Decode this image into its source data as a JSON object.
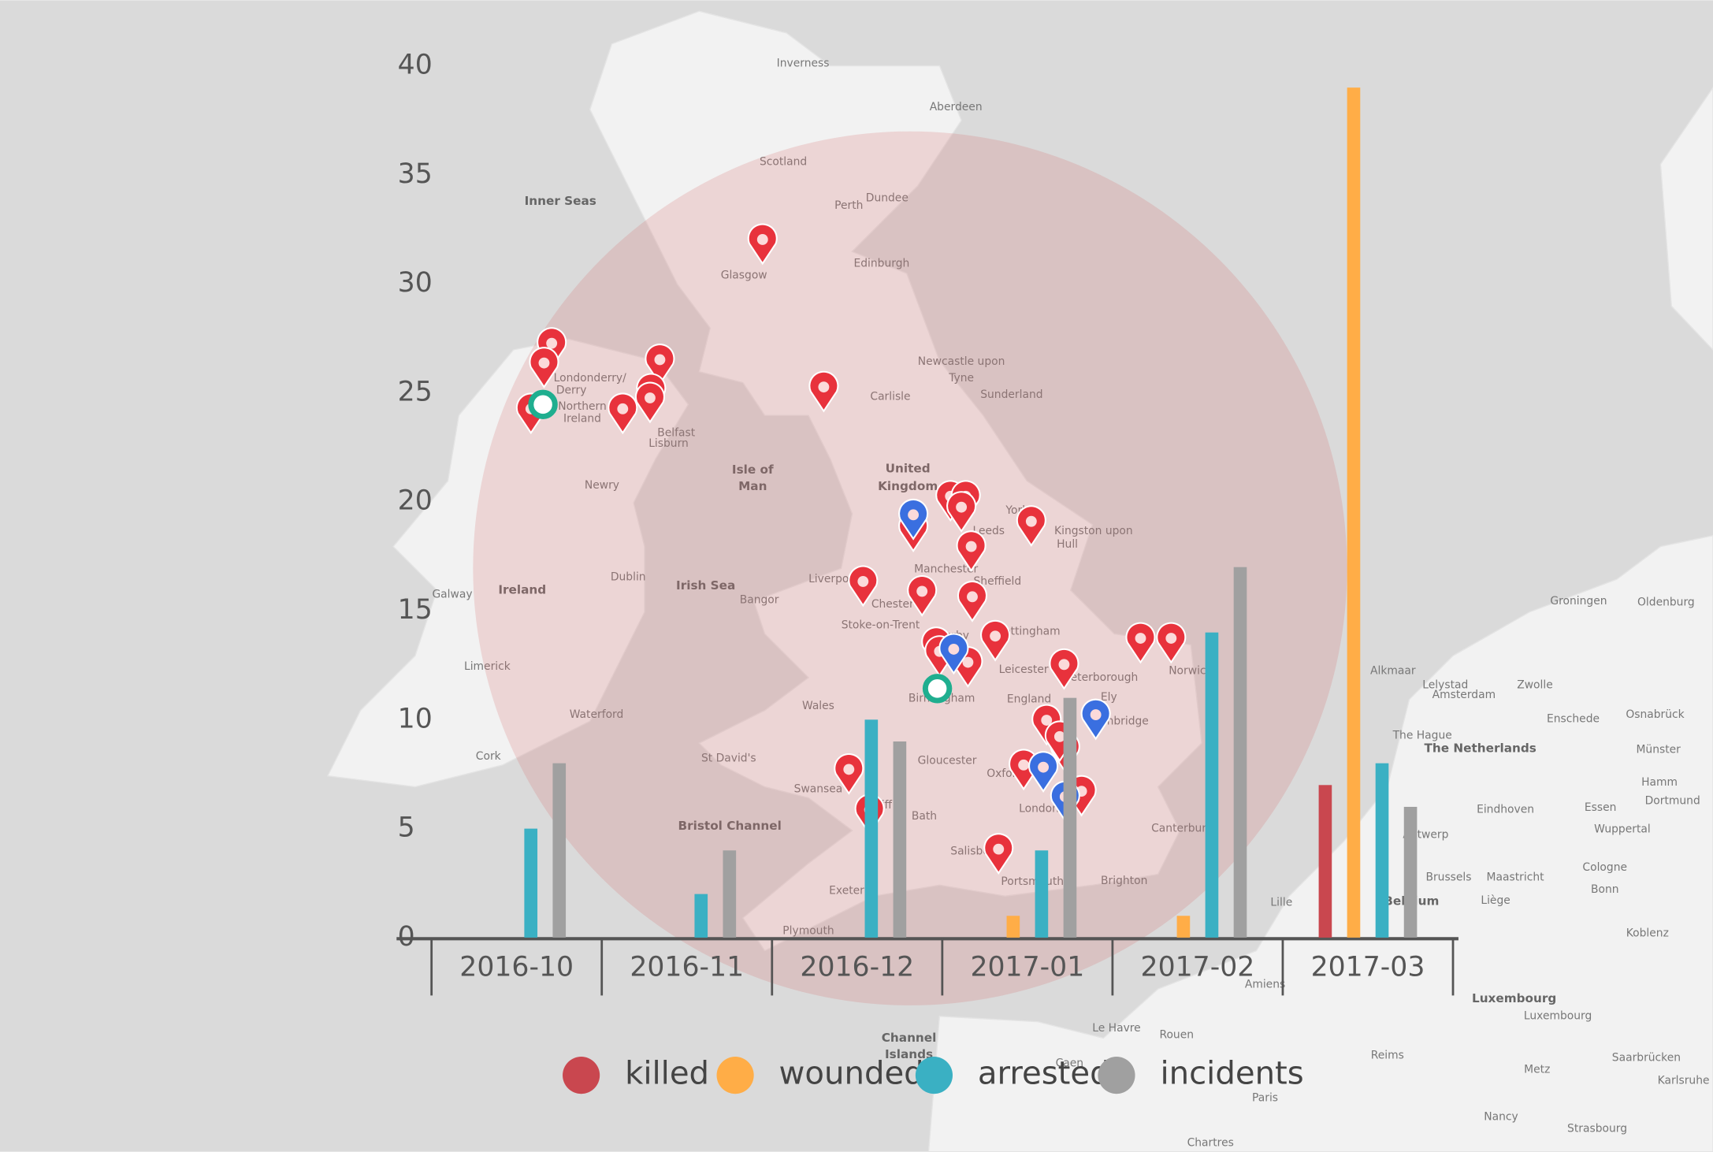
{
  "chart_data": {
    "type": "bar",
    "categories": [
      "2016-10",
      "2016-11",
      "2016-12",
      "2017-01",
      "2017-02",
      "2017-03"
    ],
    "series": [
      {
        "name": "killed",
        "color": "#c9474f",
        "values": [
          0,
          0,
          0,
          0,
          0,
          7
        ]
      },
      {
        "name": "wounded",
        "color": "#ffad47",
        "values": [
          0,
          0,
          0,
          1,
          1,
          39
        ]
      },
      {
        "name": "arrested",
        "color": "#3ab0c3",
        "values": [
          5,
          2,
          10,
          4,
          14,
          8
        ]
      },
      {
        "name": "incidents",
        "color": "#a0a0a0",
        "values": [
          8,
          4,
          9,
          11,
          17,
          6
        ]
      }
    ],
    "ylim": [
      0,
      40
    ],
    "yticks": [
      0,
      5,
      10,
      15,
      20,
      25,
      30,
      35,
      40
    ],
    "grid": false
  },
  "map": {
    "labels": [
      "Inverness",
      "Aberdeen",
      "Scotland",
      "Perth",
      "Dundee",
      "Glasgow",
      "Edinburgh",
      "Inner Seas",
      "Newcastle upon",
      "Tyne",
      "Sunderland",
      "Carlisle",
      "Londonderry/",
      "Derry",
      "Northern",
      "Ireland",
      "Belfast",
      "Lisburn",
      "Isle of",
      "Man",
      "United",
      "Kingdom",
      "York",
      "Leeds",
      "Kingston upon",
      "Hull",
      "Newry",
      "Manchester",
      "Sheffield",
      "Liverpool",
      "Dublin",
      "Ireland",
      "Galway",
      "Irish Sea",
      "Bangor",
      "Chester",
      "Stoke-on-Trent",
      "Derby",
      "Nottingham",
      "Leicester",
      "Peterborough",
      "Norwich",
      "Ely",
      "England",
      "Birmingham",
      "Wales",
      "Cambridge",
      "Limerick",
      "Waterford",
      "Cork",
      "St David's",
      "Gloucester",
      "Oxford",
      "Swansea",
      "Cardiff",
      "London",
      "Bath",
      "Bristol Channel",
      "Canterbury",
      "Salisbury",
      "Portsmouth",
      "Brighton",
      "Exeter",
      "Plymouth",
      "Lille",
      "Amiens",
      "Le Havre",
      "Rouen",
      "Channel",
      "Islands",
      "Caen",
      "Reims",
      "Paris",
      "Chartres",
      "Alkmaar",
      "Lelystad",
      "Amsterdam",
      "Zwolle",
      "Groningen",
      "Oldenburg",
      "The Hague",
      "The Netherlands",
      "Enschede",
      "Osnabrück",
      "Münster",
      "Hamm",
      "Dortmund",
      "Essen",
      "Eindhoven",
      "Wuppertal",
      "Antwerp",
      "Brussels",
      "Maastricht",
      "Cologne",
      "Liège",
      "Bonn",
      "Belgium",
      "Koblenz",
      "Luxembourg",
      "Luxembourg",
      "Metz",
      "Saarbrücken",
      "Karlsruhe",
      "Nancy",
      "Strasbourg"
    ]
  }
}
